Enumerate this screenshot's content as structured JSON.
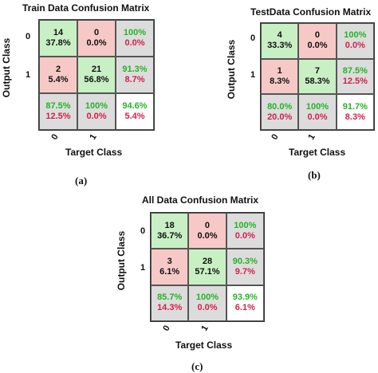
{
  "chart_data": [
    {
      "type": "table",
      "title": "Train Data Confusion Matrix",
      "ylabel": "Output Class",
      "xlabel": "Target Class",
      "row_ticks": [
        "0",
        "1"
      ],
      "col_ticks": [
        "0",
        "1"
      ],
      "caption": "(a)",
      "cells": [
        [
          {
            "count": "14",
            "pct": "37.8%"
          },
          {
            "count": "0",
            "pct": "0.0%"
          },
          {
            "top": "100%",
            "bottom": "0.0%"
          }
        ],
        [
          {
            "count": "2",
            "pct": "5.4%"
          },
          {
            "count": "21",
            "pct": "56.8%"
          },
          {
            "top": "91.3%",
            "bottom": "8.7%"
          }
        ],
        [
          {
            "top": "87.5%",
            "bottom": "12.5%"
          },
          {
            "top": "100%",
            "bottom": "0.0%"
          },
          {
            "top": "94.6%",
            "bottom": "5.4%"
          }
        ]
      ]
    },
    {
      "type": "table",
      "title": "TestData Confusion Matrix",
      "ylabel": "Output Class",
      "xlabel": "Target Class",
      "row_ticks": [
        "0",
        "1"
      ],
      "col_ticks": [
        "0",
        "1"
      ],
      "caption": "(b)",
      "cells": [
        [
          {
            "count": "4",
            "pct": "33.3%"
          },
          {
            "count": "0",
            "pct": "0.0%"
          },
          {
            "top": "100%",
            "bottom": "0.0%"
          }
        ],
        [
          {
            "count": "1",
            "pct": "8.3%"
          },
          {
            "count": "7",
            "pct": "58.3%"
          },
          {
            "top": "87.5%",
            "bottom": "12.5%"
          }
        ],
        [
          {
            "top": "80.0%",
            "bottom": "20.0%"
          },
          {
            "top": "100%",
            "bottom": "0.0%"
          },
          {
            "top": "91.7%",
            "bottom": "8.3%"
          }
        ]
      ]
    },
    {
      "type": "table",
      "title": "All Data Confusion Matrix",
      "ylabel": "Output Class",
      "xlabel": "Target Class",
      "row_ticks": [
        "0",
        "1"
      ],
      "col_ticks": [
        "0",
        "1"
      ],
      "caption": "(c)",
      "cells": [
        [
          {
            "count": "18",
            "pct": "36.7%"
          },
          {
            "count": "0",
            "pct": "0.0%"
          },
          {
            "top": "100%",
            "bottom": "0.0%"
          }
        ],
        [
          {
            "count": "3",
            "pct": "6.1%"
          },
          {
            "count": "28",
            "pct": "57.1%"
          },
          {
            "top": "90.3%",
            "bottom": "9.7%"
          }
        ],
        [
          {
            "top": "85.7%",
            "bottom": "14.3%"
          },
          {
            "top": "100%",
            "bottom": "0.0%"
          },
          {
            "top": "93.9%",
            "bottom": "6.1%"
          }
        ]
      ]
    }
  ],
  "colors": {
    "correct_cell": "#c8f0c4",
    "wrong_cell": "#f6c9c7",
    "summary_cell": "#dcdcdc",
    "positive_text": "#23b424",
    "negative_text": "#d1224a"
  }
}
